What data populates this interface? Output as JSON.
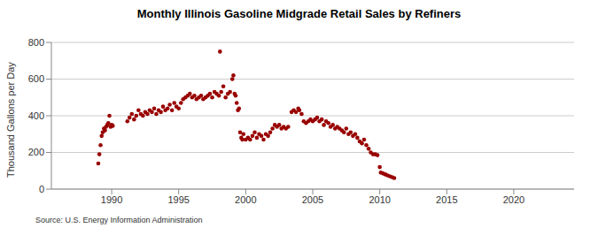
{
  "chart_data": {
    "type": "scatter",
    "title": "Monthly Illinois Gasoline Midgrade Retail Sales by Refiners",
    "y_label": "Thousand Gallons per Day",
    "source": "Source: U.S. Energy Information Administration",
    "x": [
      1989.0,
      1989.08,
      1989.17,
      1989.25,
      1989.33,
      1989.42,
      1989.5,
      1989.58,
      1989.67,
      1989.75,
      1989.83,
      1989.92,
      1990.0,
      1990.08,
      1991.17,
      1991.33,
      1991.5,
      1991.67,
      1991.83,
      1992.0,
      1992.17,
      1992.33,
      1992.5,
      1992.67,
      1992.83,
      1993.0,
      1993.17,
      1993.33,
      1993.5,
      1993.67,
      1993.83,
      1994.0,
      1994.17,
      1994.33,
      1994.5,
      1994.67,
      1994.83,
      1995.0,
      1995.17,
      1995.33,
      1995.5,
      1995.67,
      1995.83,
      1996.0,
      1996.17,
      1996.33,
      1996.5,
      1996.67,
      1996.83,
      1997.0,
      1997.17,
      1997.33,
      1997.5,
      1997.67,
      1997.83,
      1998.0,
      1998.08,
      1998.17,
      1998.33,
      1998.5,
      1998.67,
      1998.83,
      1999.0,
      1999.08,
      1999.17,
      1999.25,
      1999.33,
      1999.42,
      1999.5,
      1999.58,
      1999.67,
      1999.75,
      1999.83,
      2000.0,
      2000.17,
      2000.33,
      2000.5,
      2000.67,
      2000.83,
      2001.0,
      2001.17,
      2001.33,
      2001.5,
      2001.67,
      2001.83,
      2002.0,
      2002.17,
      2002.33,
      2002.5,
      2002.67,
      2002.83,
      2003.0,
      2003.17,
      2003.42,
      2003.58,
      2003.75,
      2003.92,
      2004.0,
      2004.17,
      2004.33,
      2004.5,
      2004.67,
      2004.83,
      2005.0,
      2005.17,
      2005.33,
      2005.5,
      2005.67,
      2005.83,
      2006.0,
      2006.17,
      2006.33,
      2006.5,
      2006.67,
      2006.83,
      2007.0,
      2007.17,
      2007.33,
      2007.5,
      2007.67,
      2007.83,
      2008.0,
      2008.17,
      2008.33,
      2008.5,
      2008.67,
      2008.83,
      2009.0,
      2009.17,
      2009.33,
      2009.5,
      2009.67,
      2009.83,
      2010.0,
      2010.08,
      2010.25,
      2010.42,
      2010.58,
      2010.75,
      2010.92,
      2011.08
    ],
    "values": [
      140,
      190,
      240,
      290,
      310,
      330,
      320,
      340,
      350,
      360,
      400,
      340,
      350,
      345,
      370,
      390,
      410,
      380,
      400,
      430,
      410,
      400,
      420,
      410,
      430,
      420,
      440,
      410,
      430,
      420,
      450,
      430,
      440,
      460,
      430,
      470,
      450,
      440,
      470,
      490,
      500,
      510,
      520,
      500,
      510,
      490,
      500,
      510,
      490,
      500,
      510,
      520,
      500,
      530,
      520,
      510,
      750,
      530,
      560,
      500,
      520,
      530,
      600,
      620,
      520,
      510,
      470,
      430,
      440,
      310,
      280,
      270,
      300,
      270,
      280,
      270,
      290,
      310,
      280,
      300,
      290,
      270,
      300,
      290,
      310,
      330,
      350,
      340,
      350,
      330,
      340,
      330,
      340,
      420,
      430,
      420,
      440,
      430,
      410,
      370,
      360,
      370,
      380,
      370,
      380,
      390,
      370,
      380,
      350,
      370,
      360,
      340,
      350,
      330,
      340,
      330,
      320,
      310,
      330,
      300,
      310,
      290,
      300,
      280,
      260,
      250,
      270,
      240,
      220,
      200,
      190,
      190,
      185,
      120,
      90,
      85,
      80,
      75,
      70,
      65,
      60
    ],
    "color": "#990000",
    "marker": "circle",
    "xlim": [
      1985.5,
      2024.5
    ],
    "xticks": [
      1990,
      1995,
      2000,
      2005,
      2010,
      2015,
      2020
    ],
    "ylim": [
      0,
      800
    ],
    "yticks": [
      0,
      200,
      400,
      600,
      800
    ],
    "grid": true
  }
}
